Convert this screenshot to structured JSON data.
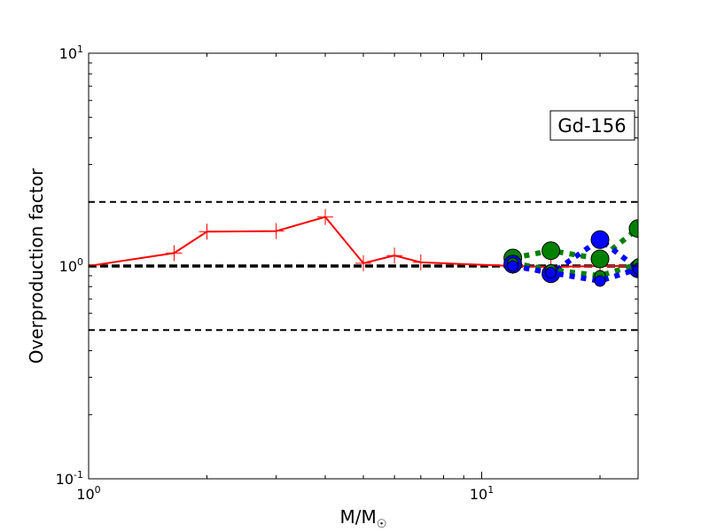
{
  "chart_data": {
    "type": "line",
    "title": "",
    "annotation": "Gd-156",
    "xlabel": {
      "base": "M/M",
      "subscript": "☉"
    },
    "ylabel": "Overproduction factor",
    "xscale": "log",
    "yscale": "log",
    "xlim": [
      1,
      25
    ],
    "ylim": [
      0.1,
      10
    ],
    "x_ticks": [
      {
        "value": 1,
        "base": "10",
        "exp": "0"
      },
      {
        "value": 10,
        "base": "10",
        "exp": "1"
      }
    ],
    "y_ticks": [
      {
        "value": 0.1,
        "base": "10",
        "exp": "-1"
      },
      {
        "value": 1,
        "base": "10",
        "exp": "0"
      },
      {
        "value": 10,
        "base": "10",
        "exp": "1"
      }
    ],
    "reference_lines": [
      {
        "y": 2.0,
        "style": "dashed",
        "color": "#000000"
      },
      {
        "y": 1.0,
        "style": "dashed-bold",
        "color": "#000000"
      },
      {
        "y": 0.5,
        "style": "dashed",
        "color": "#000000"
      }
    ],
    "series": [
      {
        "color": "#ff0000",
        "line": "solid",
        "marker": "plus",
        "x": [
          1.0,
          1.65,
          2.0,
          3.0,
          4.0,
          5.0,
          6.0,
          7.0,
          12.0,
          15.0,
          20.0,
          25.0
        ],
        "y": [
          1.0,
          1.15,
          1.45,
          1.46,
          1.7,
          1.03,
          1.12,
          1.04,
          1.0,
          0.99,
          1.0,
          1.0
        ]
      },
      {
        "color": "#008000",
        "line": "dotted-bold",
        "marker": "circle",
        "x": [
          12.0,
          15.0,
          20.0,
          25.0
        ],
        "y": [
          1.09,
          1.18,
          1.08,
          1.5
        ]
      },
      {
        "color": "#0000ff",
        "line": "dotted-bold",
        "marker": "circle",
        "x": [
          12.0,
          15.0,
          20.0,
          25.0
        ],
        "y": [
          1.02,
          0.92,
          1.33,
          0.97
        ]
      },
      {
        "color": "#008000",
        "line": "dotted-bold",
        "marker": "circle-small",
        "x": [
          12.0,
          15.0,
          20.0,
          25.0
        ],
        "y": [
          1.03,
          0.96,
          0.9,
          1.02
        ]
      },
      {
        "color": "#0000ff",
        "line": "dotted-bold",
        "marker": "circle-small",
        "x": [
          12.0,
          15.0,
          20.0,
          25.0
        ],
        "y": [
          1.0,
          0.93,
          0.85,
          0.97
        ]
      }
    ],
    "grid": false,
    "legend": "none"
  }
}
